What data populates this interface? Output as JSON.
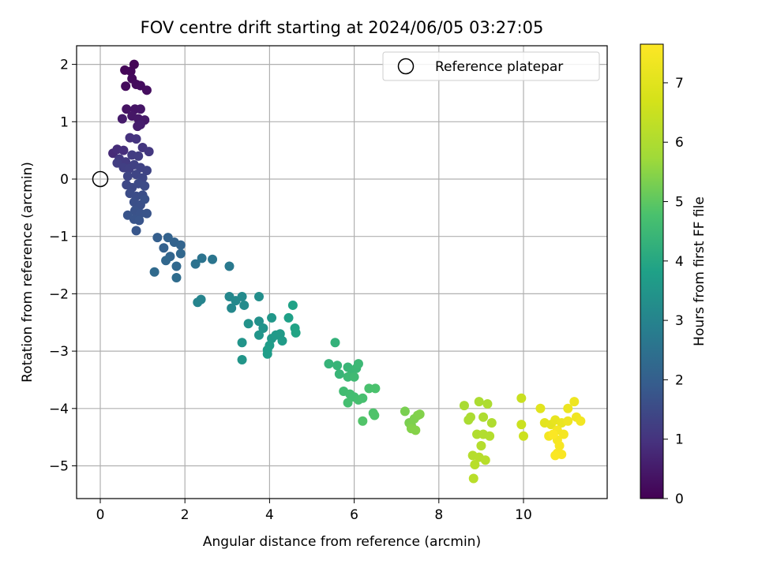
{
  "chart_data": {
    "type": "scatter",
    "title": "FOV centre drift starting at 2024/06/05 03:27:05",
    "xlabel": "Angular distance from reference (arcmin)",
    "ylabel": "Rotation from reference (arcmin)",
    "xlim": [
      -0.57,
      12.0
    ],
    "ylim": [
      -5.6,
      2.35
    ],
    "xticks": [
      "0",
      "2",
      "4",
      "6",
      "8",
      "10"
    ],
    "yticks": [
      "2",
      "1",
      "0",
      "−1",
      "−2",
      "−3",
      "−4",
      "−5"
    ],
    "grid": true,
    "legend": {
      "placement": "top-right",
      "entries": [
        "Reference platepar"
      ]
    },
    "reference_point": {
      "x": 0,
      "y": 0
    },
    "colorbar": {
      "label": "Hours from first FF file",
      "colormap": "viridis",
      "range": [
        0,
        7.65
      ],
      "ticks": [
        "0",
        "1",
        "2",
        "3",
        "4",
        "5",
        "6",
        "7"
      ]
    },
    "marker_color_note": "color encodes hours",
    "points": [
      [
        0.58,
        1.9,
        0.1
      ],
      [
        0.72,
        1.88,
        0.12
      ],
      [
        0.8,
        2.0,
        0.05
      ],
      [
        0.75,
        1.75,
        0.15
      ],
      [
        0.6,
        1.62,
        0.18
      ],
      [
        0.85,
        1.65,
        0.2
      ],
      [
        0.95,
        1.63,
        0.22
      ],
      [
        1.1,
        1.55,
        0.25
      ],
      [
        0.62,
        1.22,
        0.35
      ],
      [
        0.82,
        1.22,
        0.38
      ],
      [
        0.95,
        1.22,
        0.4
      ],
      [
        0.75,
        1.1,
        0.42
      ],
      [
        0.9,
        1.05,
        0.44
      ],
      [
        1.05,
        1.03,
        0.46
      ],
      [
        0.52,
        1.05,
        0.5
      ],
      [
        0.88,
        0.92,
        0.52
      ],
      [
        0.95,
        0.95,
        0.55
      ],
      [
        0.3,
        0.45,
        0.8
      ],
      [
        0.4,
        0.52,
        0.85
      ],
      [
        0.55,
        0.5,
        0.9
      ],
      [
        0.7,
        0.72,
        0.95
      ],
      [
        0.85,
        0.7,
        1.0
      ],
      [
        1.0,
        0.55,
        1.05
      ],
      [
        1.15,
        0.48,
        1.1
      ],
      [
        0.45,
        0.35,
        1.12
      ],
      [
        0.6,
        0.3,
        1.15
      ],
      [
        0.75,
        0.42,
        1.18
      ],
      [
        0.9,
        0.4,
        1.2
      ],
      [
        0.4,
        0.28,
        1.22
      ],
      [
        0.55,
        0.2,
        1.25
      ],
      [
        0.68,
        0.18,
        1.27
      ],
      [
        0.8,
        0.25,
        1.3
      ],
      [
        0.95,
        0.2,
        1.32
      ],
      [
        1.1,
        0.15,
        1.35
      ],
      [
        0.65,
        0.05,
        1.38
      ],
      [
        0.85,
        0.08,
        1.4
      ],
      [
        1.0,
        0.02,
        1.42
      ],
      [
        0.62,
        -0.1,
        1.45
      ],
      [
        0.75,
        -0.15,
        1.48
      ],
      [
        0.9,
        -0.08,
        1.5
      ],
      [
        1.05,
        -0.12,
        1.52
      ],
      [
        0.7,
        -0.25,
        1.55
      ],
      [
        0.85,
        -0.3,
        1.57
      ],
      [
        1.0,
        -0.28,
        1.6
      ],
      [
        0.8,
        -0.4,
        1.62
      ],
      [
        0.95,
        -0.45,
        1.64
      ],
      [
        1.05,
        -0.35,
        1.66
      ],
      [
        0.82,
        -0.55,
        1.68
      ],
      [
        0.95,
        -0.6,
        1.7
      ],
      [
        1.1,
        -0.6,
        1.72
      ],
      [
        0.65,
        -0.63,
        1.73
      ],
      [
        0.8,
        -0.7,
        1.74
      ],
      [
        0.92,
        -0.72,
        1.76
      ],
      [
        0.85,
        -0.9,
        1.78
      ],
      [
        1.35,
        -1.02,
        2.0
      ],
      [
        1.5,
        -1.2,
        2.05
      ],
      [
        1.6,
        -1.02,
        2.08
      ],
      [
        1.75,
        -1.1,
        2.1
      ],
      [
        1.9,
        -1.15,
        2.12
      ],
      [
        1.65,
        -1.35,
        2.15
      ],
      [
        1.55,
        -1.42,
        2.2
      ],
      [
        1.9,
        -1.3,
        2.22
      ],
      [
        1.8,
        -1.52,
        2.25
      ],
      [
        1.28,
        -1.62,
        2.3
      ],
      [
        1.8,
        -1.72,
        2.35
      ],
      [
        2.25,
        -1.48,
        2.5
      ],
      [
        2.4,
        -1.38,
        2.55
      ],
      [
        2.65,
        -1.4,
        2.6
      ],
      [
        3.05,
        -1.52,
        2.7
      ],
      [
        2.3,
        -2.15,
        3.0
      ],
      [
        2.38,
        -2.1,
        3.02
      ],
      [
        3.05,
        -2.05,
        3.1
      ],
      [
        3.1,
        -2.25,
        3.12
      ],
      [
        3.2,
        -2.12,
        3.15
      ],
      [
        3.35,
        -2.05,
        3.18
      ],
      [
        3.4,
        -2.2,
        3.2
      ],
      [
        3.75,
        -2.05,
        3.3
      ],
      [
        3.75,
        -2.48,
        3.35
      ],
      [
        3.5,
        -2.52,
        3.4
      ],
      [
        3.85,
        -2.6,
        3.42
      ],
      [
        3.35,
        -2.85,
        3.45
      ],
      [
        3.75,
        -2.72,
        3.48
      ],
      [
        3.35,
        -3.15,
        3.5
      ],
      [
        4.05,
        -2.42,
        3.55
      ],
      [
        4.05,
        -2.78,
        3.6
      ],
      [
        4.15,
        -2.72,
        3.62
      ],
      [
        4.25,
        -2.7,
        3.64
      ],
      [
        4.3,
        -2.82,
        3.66
      ],
      [
        4.0,
        -2.9,
        3.68
      ],
      [
        3.95,
        -2.98,
        3.7
      ],
      [
        3.95,
        -3.05,
        3.72
      ],
      [
        4.45,
        -2.42,
        3.8
      ],
      [
        4.55,
        -2.2,
        3.85
      ],
      [
        4.6,
        -2.6,
        3.88
      ],
      [
        4.62,
        -2.68,
        3.9
      ],
      [
        5.55,
        -2.85,
        4.3
      ],
      [
        5.4,
        -3.22,
        4.35
      ],
      [
        5.6,
        -3.25,
        4.38
      ],
      [
        5.65,
        -3.4,
        4.4
      ],
      [
        5.85,
        -3.28,
        4.42
      ],
      [
        5.95,
        -3.35,
        4.45
      ],
      [
        6.05,
        -3.3,
        4.48
      ],
      [
        6.1,
        -3.22,
        4.5
      ],
      [
        5.85,
        -3.45,
        4.52
      ],
      [
        6.0,
        -3.45,
        4.55
      ],
      [
        5.75,
        -3.7,
        4.6
      ],
      [
        5.9,
        -3.75,
        4.62
      ],
      [
        6.0,
        -3.8,
        4.65
      ],
      [
        5.85,
        -3.9,
        4.68
      ],
      [
        6.1,
        -3.85,
        4.7
      ],
      [
        6.2,
        -3.82,
        4.72
      ],
      [
        6.35,
        -3.65,
        4.75
      ],
      [
        6.5,
        -3.65,
        4.78
      ],
      [
        6.45,
        -4.08,
        4.82
      ],
      [
        6.48,
        -4.12,
        4.84
      ],
      [
        6.2,
        -4.22,
        4.86
      ],
      [
        7.2,
        -4.05,
        5.3
      ],
      [
        7.3,
        -4.25,
        5.32
      ],
      [
        7.35,
        -4.3,
        5.34
      ],
      [
        7.42,
        -4.18,
        5.36
      ],
      [
        7.5,
        -4.12,
        5.38
      ],
      [
        7.55,
        -4.1,
        5.4
      ],
      [
        7.35,
        -4.35,
        5.42
      ],
      [
        7.45,
        -4.38,
        5.44
      ],
      [
        8.6,
        -3.95,
        5.9
      ],
      [
        8.7,
        -4.2,
        5.92
      ],
      [
        8.75,
        -4.15,
        5.94
      ],
      [
        8.95,
        -3.88,
        5.96
      ],
      [
        9.15,
        -3.92,
        5.98
      ],
      [
        9.05,
        -4.15,
        6.0
      ],
      [
        9.25,
        -4.25,
        6.02
      ],
      [
        8.9,
        -4.45,
        6.04
      ],
      [
        9.05,
        -4.45,
        6.06
      ],
      [
        9.2,
        -4.48,
        6.08
      ],
      [
        9.0,
        -4.65,
        6.1
      ],
      [
        8.8,
        -4.82,
        6.12
      ],
      [
        8.95,
        -4.85,
        6.14
      ],
      [
        9.1,
        -4.9,
        6.16
      ],
      [
        8.85,
        -4.98,
        6.18
      ],
      [
        8.82,
        -5.22,
        6.2
      ],
      [
        9.95,
        -3.82,
        6.5
      ],
      [
        9.95,
        -4.28,
        6.52
      ],
      [
        10.0,
        -4.48,
        6.55
      ],
      [
        10.4,
        -4.0,
        7.0
      ],
      [
        10.5,
        -4.25,
        7.05
      ],
      [
        10.65,
        -4.28,
        7.1
      ],
      [
        10.75,
        -4.2,
        7.15
      ],
      [
        10.9,
        -4.25,
        7.2
      ],
      [
        11.05,
        -4.0,
        7.25
      ],
      [
        11.2,
        -3.88,
        7.3
      ],
      [
        11.05,
        -4.22,
        7.32
      ],
      [
        11.25,
        -4.15,
        7.35
      ],
      [
        11.35,
        -4.22,
        7.4
      ],
      [
        10.6,
        -4.48,
        7.42
      ],
      [
        10.8,
        -4.38,
        7.44
      ],
      [
        10.95,
        -4.45,
        7.46
      ],
      [
        10.8,
        -4.55,
        7.48
      ],
      [
        10.85,
        -4.65,
        7.5
      ],
      [
        10.8,
        -4.78,
        7.52
      ],
      [
        10.9,
        -4.8,
        7.55
      ],
      [
        10.75,
        -4.82,
        7.58
      ],
      [
        10.7,
        -4.45,
        7.6
      ]
    ]
  }
}
